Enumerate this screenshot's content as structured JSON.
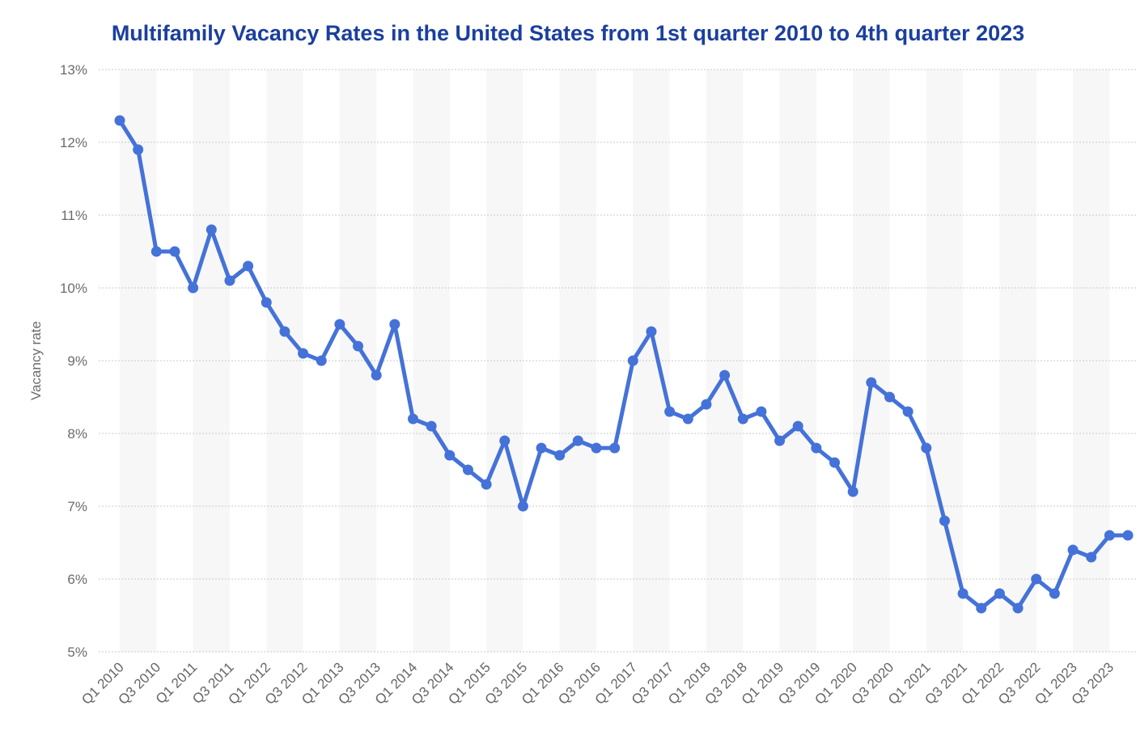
{
  "chart_data": {
    "type": "line",
    "title": "Multifamily Vacancy Rates in the United States from 1st quarter 2010 to 4th quarter 2023",
    "xlabel": "",
    "ylabel": "Vacancy rate",
    "ylim": [
      5,
      13
    ],
    "y_ticks": [
      "5%",
      "6%",
      "7%",
      "8%",
      "9%",
      "10%",
      "11%",
      "12%",
      "13%"
    ],
    "grid": true,
    "accent_color": "#4472d8",
    "x": [
      "Q1 2010",
      "Q2 2010",
      "Q3 2010",
      "Q4 2010",
      "Q1 2011",
      "Q2 2011",
      "Q3 2011",
      "Q4 2011",
      "Q1 2012",
      "Q2 2012",
      "Q3 2012",
      "Q4 2012",
      "Q1 2013",
      "Q2 2013",
      "Q3 2013",
      "Q4 2013",
      "Q1 2014",
      "Q2 2014",
      "Q3 2014",
      "Q4 2014",
      "Q1 2015",
      "Q2 2015",
      "Q3 2015",
      "Q4 2015",
      "Q1 2016",
      "Q2 2016",
      "Q3 2016",
      "Q4 2016",
      "Q1 2017",
      "Q2 2017",
      "Q3 2017",
      "Q4 2017",
      "Q1 2018",
      "Q2 2018",
      "Q3 2018",
      "Q4 2018",
      "Q1 2019",
      "Q2 2019",
      "Q3 2019",
      "Q4 2019",
      "Q1 2020",
      "Q2 2020",
      "Q3 2020",
      "Q4 2020",
      "Q1 2021",
      "Q2 2021",
      "Q3 2021",
      "Q4 2021",
      "Q1 2022",
      "Q2 2022",
      "Q3 2022",
      "Q4 2022",
      "Q1 2023",
      "Q2 2023",
      "Q3 2023",
      "Q4 2023"
    ],
    "x_tick_labels": [
      "Q1 2010",
      "Q3 2010",
      "Q1 2011",
      "Q3 2011",
      "Q1 2012",
      "Q3 2012",
      "Q1 2013",
      "Q3 2013",
      "Q1 2014",
      "Q3 2014",
      "Q1 2015",
      "Q3 2015",
      "Q1 2016",
      "Q3 2016",
      "Q1 2017",
      "Q3 2017",
      "Q1 2018",
      "Q3 2018",
      "Q1 2019",
      "Q3 2019",
      "Q1 2020",
      "Q3 2020",
      "Q1 2021",
      "Q3 2021",
      "Q1 2022",
      "Q3 2022",
      "Q1 2023",
      "Q3 2023"
    ],
    "series": [
      {
        "values": [
          12.3,
          11.9,
          10.5,
          10.5,
          10.0,
          10.8,
          10.1,
          10.3,
          9.8,
          9.4,
          9.1,
          9.0,
          9.5,
          9.2,
          8.8,
          9.5,
          8.2,
          8.1,
          7.7,
          7.5,
          7.3,
          7.9,
          7.0,
          7.8,
          7.7,
          7.9,
          7.8,
          7.8,
          9.0,
          9.4,
          8.3,
          8.2,
          8.4,
          8.8,
          8.2,
          8.3,
          7.9,
          8.1,
          7.8,
          7.6,
          7.2,
          8.7,
          8.5,
          8.3,
          7.8,
          6.8,
          5.8,
          5.6,
          5.8,
          5.6,
          6.0,
          5.8,
          6.4,
          6.3,
          6.6,
          6.6
        ]
      }
    ]
  }
}
